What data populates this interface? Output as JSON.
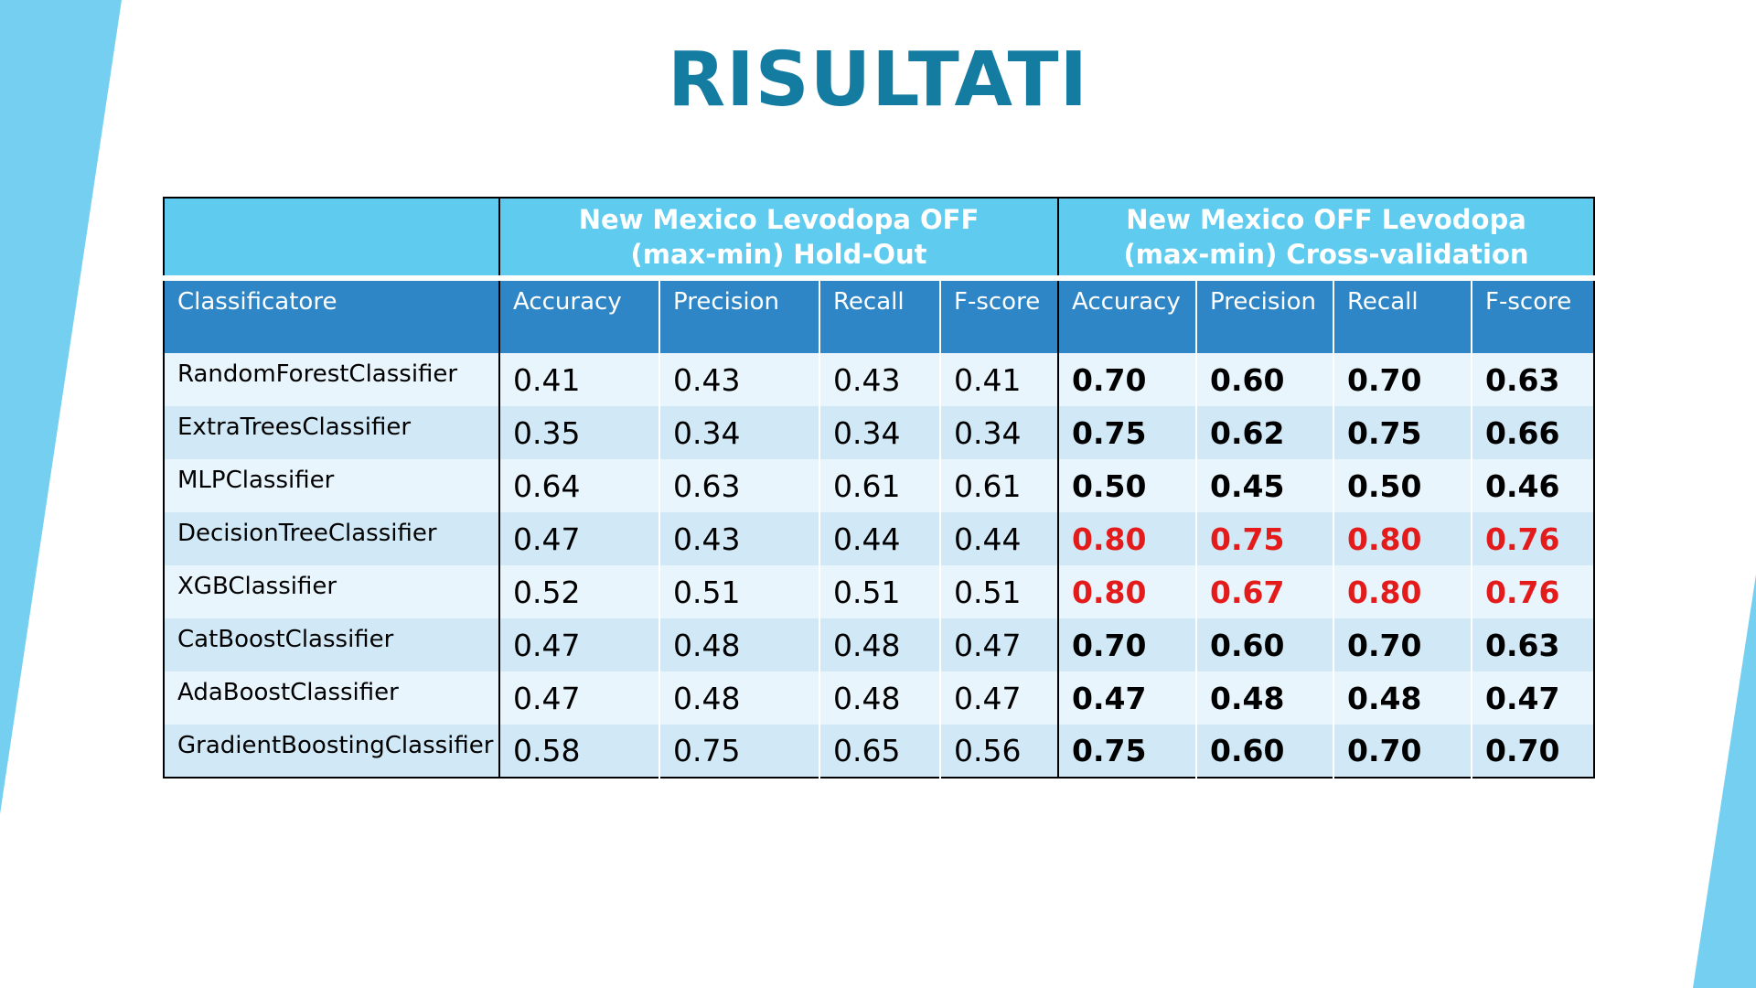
{
  "title": "RISULTATI",
  "colors": {
    "title": "#147ba1",
    "group_header_bg": "#5ecbef",
    "column_header_bg": "#2e86c6",
    "row_light": "#e9f5fc",
    "row_dark": "#d1e9f6",
    "highlight": "#e31b1b",
    "decoration": "#74cff0"
  },
  "table": {
    "groups": [
      {
        "line1": "New Mexico Levodopa OFF",
        "line2": "(max-min) Hold-Out"
      },
      {
        "line1": "New Mexico OFF Levodopa",
        "line2": "(max-min) Cross-validation"
      }
    ],
    "columns": [
      "Classificatore",
      "Accuracy",
      "Precision",
      "Recall",
      "F-score",
      "Accuracy",
      "Precision",
      "Recall",
      "F-score"
    ],
    "rows": [
      {
        "name": "RandomForestClassifier",
        "holdout": [
          "0.41",
          "0.43",
          "0.43",
          "0.41"
        ],
        "cv": [
          "0.70",
          "0.60",
          "0.70",
          "0.63"
        ],
        "highlight": false
      },
      {
        "name": "ExtraTreesClassifier",
        "holdout": [
          "0.35",
          "0.34",
          "0.34",
          "0.34"
        ],
        "cv": [
          "0.75",
          "0.62",
          "0.75",
          "0.66"
        ],
        "highlight": false
      },
      {
        "name": "MLPClassifier",
        "holdout": [
          "0.64",
          "0.63",
          "0.61",
          "0.61"
        ],
        "cv": [
          "0.50",
          "0.45",
          "0.50",
          "0.46"
        ],
        "highlight": false
      },
      {
        "name": "DecisionTreeClassifier",
        "holdout": [
          "0.47",
          "0.43",
          "0.44",
          "0.44"
        ],
        "cv": [
          "0.80",
          "0.75",
          "0.80",
          "0.76"
        ],
        "highlight": true
      },
      {
        "name": "XGBClassifier",
        "holdout": [
          "0.52",
          "0.51",
          "0.51",
          "0.51"
        ],
        "cv": [
          "0.80",
          "0.67",
          "0.80",
          "0.76"
        ],
        "highlight": true
      },
      {
        "name": "CatBoostClassifier",
        "holdout": [
          "0.47",
          "0.48",
          "0.48",
          "0.47"
        ],
        "cv": [
          "0.70",
          "0.60",
          "0.70",
          "0.63"
        ],
        "highlight": false
      },
      {
        "name": "AdaBoostClassifier",
        "holdout": [
          "0.47",
          "0.48",
          "0.48",
          "0.47"
        ],
        "cv": [
          "0.47",
          "0.48",
          "0.48",
          "0.47"
        ],
        "highlight": false
      },
      {
        "name": "GradientBoostingClassifier",
        "holdout": [
          "0.58",
          "0.75",
          "0.65",
          "0.56"
        ],
        "cv": [
          "0.75",
          "0.60",
          "0.70",
          "0.70"
        ],
        "highlight": false
      }
    ]
  }
}
